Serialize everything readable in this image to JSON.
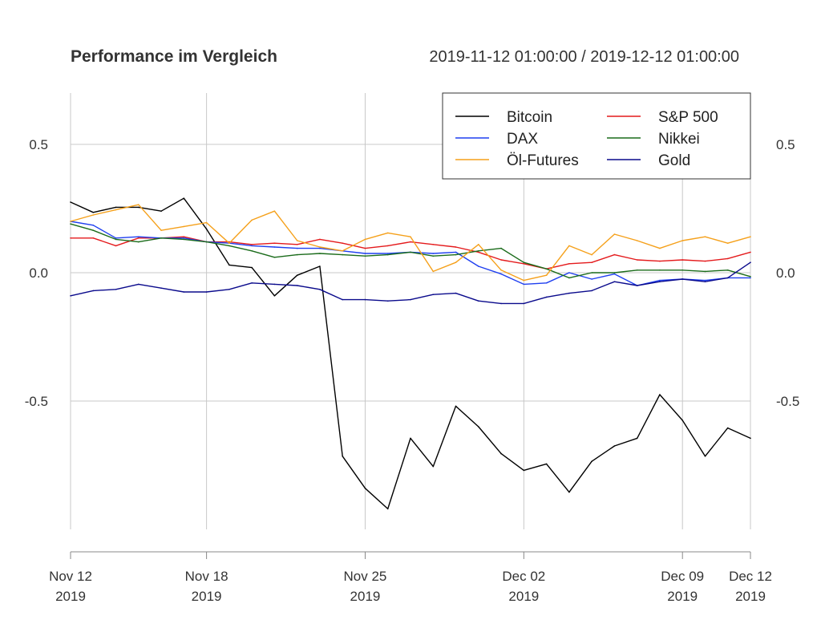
{
  "chart_data": {
    "type": "line",
    "title": "Performance im Vergleich",
    "subtitle": "2019-11-12 01:00:00 / 2019-12-12 01:00:00",
    "xlabel": "",
    "ylabel": "",
    "x": [
      "2019-11-12",
      "2019-11-13",
      "2019-11-14",
      "2019-11-15",
      "2019-11-16",
      "2019-11-17",
      "2019-11-18",
      "2019-11-19",
      "2019-11-20",
      "2019-11-21",
      "2019-11-22",
      "2019-11-23",
      "2019-11-24",
      "2019-11-25",
      "2019-11-26",
      "2019-11-27",
      "2019-11-28",
      "2019-11-29",
      "2019-11-30",
      "2019-12-01",
      "2019-12-02",
      "2019-12-03",
      "2019-12-04",
      "2019-12-05",
      "2019-12-06",
      "2019-12-07",
      "2019-12-08",
      "2019-12-09",
      "2019-12-10",
      "2019-12-11",
      "2019-12-12"
    ],
    "xlim": [
      "2019-11-12",
      "2019-12-12"
    ],
    "ylim": [
      -1.0,
      0.7
    ],
    "y_ticks": [
      {
        "value": 0.5,
        "label": "0.5"
      },
      {
        "value": 0.0,
        "label": "0.0"
      },
      {
        "value": -0.5,
        "label": "-0.5"
      }
    ],
    "x_ticks": [
      {
        "date": "2019-11-12",
        "line1": "Nov 12",
        "line2": "2019"
      },
      {
        "date": "2019-11-18",
        "line1": "Nov 18",
        "line2": "2019"
      },
      {
        "date": "2019-11-25",
        "line1": "Nov 25",
        "line2": "2019"
      },
      {
        "date": "2019-12-02",
        "line1": "Dec 02",
        "line2": "2019"
      },
      {
        "date": "2019-12-09",
        "line1": "Dec 09",
        "line2": "2019"
      },
      {
        "date": "2019-12-12",
        "line1": "Dec 12",
        "line2": "2019"
      }
    ],
    "grid": true,
    "legend_position": "top-right",
    "series": [
      {
        "name": "Bitcoin",
        "color": "#000000",
        "values": [
          0.275,
          0.235,
          0.255,
          0.255,
          0.24,
          0.29,
          0.17,
          0.03,
          0.02,
          -0.09,
          -0.01,
          0.025,
          -0.715,
          -0.84,
          -0.92,
          -0.645,
          -0.755,
          -0.52,
          -0.6,
          -0.705,
          -0.77,
          -0.745,
          -0.855,
          -0.735,
          -0.675,
          -0.645,
          -0.475,
          -0.575,
          -0.715,
          -0.605,
          -0.645
        ]
      },
      {
        "name": "S&P 500",
        "color": "#e41a1c",
        "values": [
          0.135,
          0.135,
          0.105,
          0.135,
          0.135,
          0.14,
          0.12,
          0.12,
          0.11,
          0.115,
          0.11,
          0.13,
          0.115,
          0.095,
          0.105,
          0.12,
          0.11,
          0.1,
          0.08,
          0.05,
          0.035,
          0.015,
          0.035,
          0.04,
          0.07,
          0.05,
          0.045,
          0.05,
          0.045,
          0.055,
          0.08
        ]
      },
      {
        "name": "DAX",
        "color": "#1f3ff0",
        "values": [
          0.2,
          0.185,
          0.135,
          0.14,
          0.135,
          0.135,
          0.12,
          0.115,
          0.105,
          0.1,
          0.095,
          0.095,
          0.085,
          0.075,
          0.075,
          0.08,
          0.075,
          0.08,
          0.025,
          -0.005,
          -0.045,
          -0.04,
          0.0,
          -0.025,
          -0.005,
          -0.05,
          -0.03,
          -0.025,
          -0.03,
          -0.02,
          -0.02
        ]
      },
      {
        "name": "Nikkei",
        "color": "#1a6b1a",
        "values": [
          0.19,
          0.165,
          0.13,
          0.12,
          0.135,
          0.13,
          0.12,
          0.105,
          0.085,
          0.06,
          0.07,
          0.075,
          0.07,
          0.065,
          0.07,
          0.08,
          0.065,
          0.07,
          0.085,
          0.095,
          0.04,
          0.015,
          -0.02,
          0.0,
          0.0,
          0.01,
          0.01,
          0.01,
          0.005,
          0.01,
          -0.015
        ]
      },
      {
        "name": "Öl-Futures",
        "color": "#f5a01a",
        "values": [
          0.2,
          0.225,
          0.245,
          0.265,
          0.165,
          0.18,
          0.195,
          0.115,
          0.205,
          0.24,
          0.125,
          0.1,
          0.085,
          0.13,
          0.155,
          0.14,
          0.005,
          0.04,
          0.11,
          0.01,
          -0.03,
          -0.01,
          0.105,
          0.07,
          0.15,
          0.125,
          0.095,
          0.125,
          0.14,
          0.115,
          0.14
        ]
      },
      {
        "name": "Gold",
        "color": "#0a0a8c",
        "values": [
          -0.09,
          -0.07,
          -0.065,
          -0.045,
          -0.06,
          -0.075,
          -0.075,
          -0.065,
          -0.04,
          -0.045,
          -0.05,
          -0.065,
          -0.105,
          -0.105,
          -0.11,
          -0.105,
          -0.085,
          -0.08,
          -0.11,
          -0.12,
          -0.12,
          -0.095,
          -0.08,
          -0.07,
          -0.035,
          -0.05,
          -0.035,
          -0.025,
          -0.035,
          -0.02,
          0.04
        ]
      }
    ]
  }
}
